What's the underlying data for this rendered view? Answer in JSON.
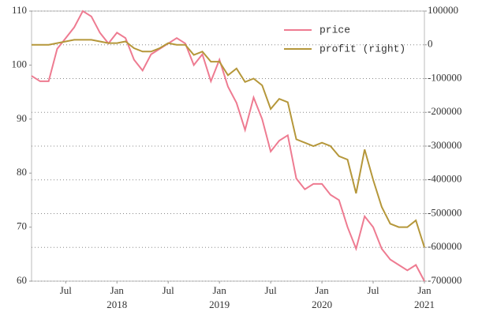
{
  "chart_data": {
    "type": "line",
    "x": [
      "2017-03",
      "2017-04",
      "2017-05",
      "2017-06",
      "2017-07",
      "2017-08",
      "2017-09",
      "2017-10",
      "2017-11",
      "2017-12",
      "2018-01",
      "2018-02",
      "2018-03",
      "2018-04",
      "2018-05",
      "2018-06",
      "2018-07",
      "2018-08",
      "2018-09",
      "2018-10",
      "2018-11",
      "2018-12",
      "2019-01",
      "2019-02",
      "2019-03",
      "2019-04",
      "2019-05",
      "2019-06",
      "2019-07",
      "2019-08",
      "2019-09",
      "2019-10",
      "2019-11",
      "2019-12",
      "2020-01",
      "2020-02",
      "2020-03",
      "2020-04",
      "2020-05",
      "2020-06",
      "2020-07",
      "2020-08",
      "2020-09",
      "2020-10",
      "2020-11",
      "2020-12",
      "2021-01"
    ],
    "series": [
      {
        "name": "price",
        "color": "#ee7b91",
        "values": [
          98,
          97,
          97,
          103,
          105,
          107,
          110,
          109,
          106,
          104,
          106,
          105,
          101,
          99,
          102,
          103,
          104,
          105,
          104,
          100,
          102,
          97,
          101,
          96,
          93,
          88,
          94,
          90,
          84,
          86,
          87,
          79,
          77,
          78,
          78,
          76,
          75,
          70,
          66,
          72,
          70,
          66,
          64,
          63,
          62,
          63,
          60
        ]
      },
      {
        "name": "profit (right)",
        "color": "#b5973a",
        "axis": "y2",
        "values": [
          0,
          0,
          0,
          5000,
          10000,
          15000,
          15000,
          15000,
          10000,
          5000,
          5000,
          10000,
          -10000,
          -20000,
          -20000,
          -10000,
          5000,
          0,
          0,
          -30000,
          -20000,
          -50000,
          -50000,
          -90000,
          -70000,
          -110000,
          -100000,
          -120000,
          -190000,
          -160000,
          -170000,
          -280000,
          -290000,
          -300000,
          -290000,
          -300000,
          -330000,
          -340000,
          -440000,
          -310000,
          -400000,
          -480000,
          -530000,
          -540000,
          -540000,
          -520000,
          -600000
        ]
      }
    ],
    "xlim": [
      "2017-03",
      "2021-01"
    ],
    "xticks": [
      {
        "value": "2017-07",
        "label": "Jul"
      },
      {
        "value": "2018-01",
        "label": "Jan",
        "sublabel": "2018"
      },
      {
        "value": "2018-07",
        "label": "Jul"
      },
      {
        "value": "2019-01",
        "label": "Jan",
        "sublabel": "2019"
      },
      {
        "value": "2019-07",
        "label": "Jul"
      },
      {
        "value": "2020-01",
        "label": "Jan",
        "sublabel": "2020"
      },
      {
        "value": "2020-07",
        "label": "Jul"
      },
      {
        "value": "2021-01",
        "label": "Jan",
        "sublabel": "2021"
      }
    ],
    "ylim": [
      60,
      110
    ],
    "yticks": [
      60,
      70,
      80,
      90,
      100,
      110
    ],
    "y2lim": [
      -700000,
      100000
    ],
    "y2ticks": [
      -700000,
      -600000,
      -500000,
      -400000,
      -300000,
      -200000,
      -100000,
      0,
      100000
    ],
    "grid": "y2",
    "legend": "upper right"
  }
}
